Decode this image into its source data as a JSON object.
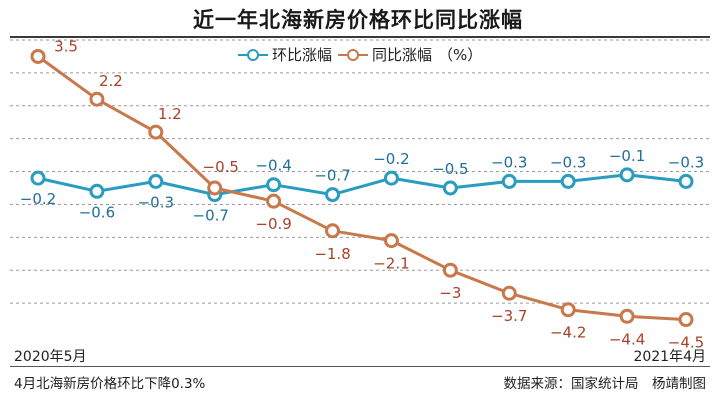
{
  "title": "近一年北海新房价格环比同比涨幅",
  "legend": {
    "mom": "环比涨幅",
    "yoy": "同比涨幅",
    "unit": "（%）"
  },
  "x_start_label": "2020年5月",
  "x_end_label": "2021年4月",
  "footnote": "4月北海新房价格环比下降0.3%",
  "source": "数据来源：国家统计局　杨靖制图",
  "colors": {
    "mom": "#2a9cc0",
    "yoy": "#c8784a",
    "grid": "#9a9a9a",
    "label_mom": "#1f6f99",
    "label_yoy": "#a8422a"
  },
  "chart_data": {
    "type": "line",
    "title": "近一年北海新房价格环比同比涨幅",
    "x_label_start": "2020年5月",
    "x_label_end": "2021年4月",
    "n_points": 12,
    "ylim": [
      -5,
      4
    ],
    "grid": true,
    "legend_position": "top",
    "series": [
      {
        "name": "环比涨幅",
        "values": [
          -0.2,
          -0.6,
          -0.3,
          -0.7,
          -0.4,
          -0.7,
          -0.2,
          -0.5,
          -0.3,
          -0.3,
          -0.1,
          -0.3
        ]
      },
      {
        "name": "同比涨幅",
        "values": [
          3.5,
          2.2,
          1.2,
          -0.5,
          -0.9,
          -1.8,
          -2.1,
          -3,
          -3.7,
          -4.2,
          -4.4,
          -4.5
        ]
      }
    ]
  }
}
